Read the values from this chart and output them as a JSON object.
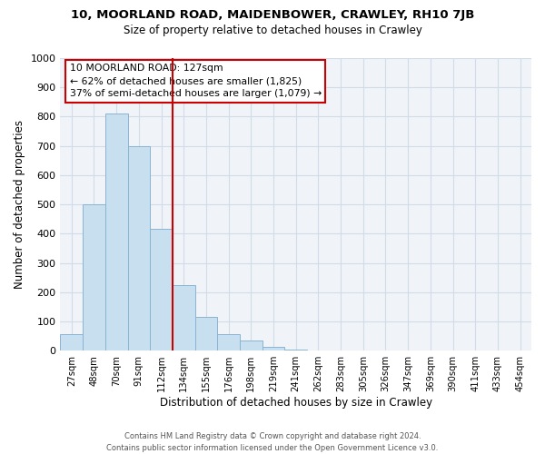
{
  "title": "10, MOORLAND ROAD, MAIDENBOWER, CRAWLEY, RH10 7JB",
  "subtitle": "Size of property relative to detached houses in Crawley",
  "xlabel": "Distribution of detached houses by size in Crawley",
  "ylabel": "Number of detached properties",
  "bar_labels": [
    "27sqm",
    "48sqm",
    "70sqm",
    "91sqm",
    "112sqm",
    "134sqm",
    "155sqm",
    "176sqm",
    "198sqm",
    "219sqm",
    "241sqm",
    "262sqm",
    "283sqm",
    "305sqm",
    "326sqm",
    "347sqm",
    "369sqm",
    "390sqm",
    "411sqm",
    "433sqm",
    "454sqm"
  ],
  "bar_values": [
    55,
    500,
    810,
    700,
    415,
    225,
    115,
    55,
    35,
    12,
    5,
    2,
    1,
    0,
    0,
    0,
    1,
    0,
    0,
    0,
    0
  ],
  "bar_color": "#c8dff0",
  "bar_edge_color": "#8ab4d4",
  "vline_x_idx": 4.5,
  "vline_color": "#cc0000",
  "ylim": [
    0,
    1000
  ],
  "yticks": [
    0,
    100,
    200,
    300,
    400,
    500,
    600,
    700,
    800,
    900,
    1000
  ],
  "annotation_title": "10 MOORLAND ROAD: 127sqm",
  "annotation_line1": "← 62% of detached houses are smaller (1,825)",
  "annotation_line2": "37% of semi-detached houses are larger (1,079) →",
  "footer_line1": "Contains HM Land Registry data © Crown copyright and database right 2024.",
  "footer_line2": "Contains public sector information licensed under the Open Government Licence v3.0.",
  "grid_color": "#d0dce8",
  "bg_color": "#f0f4f8"
}
